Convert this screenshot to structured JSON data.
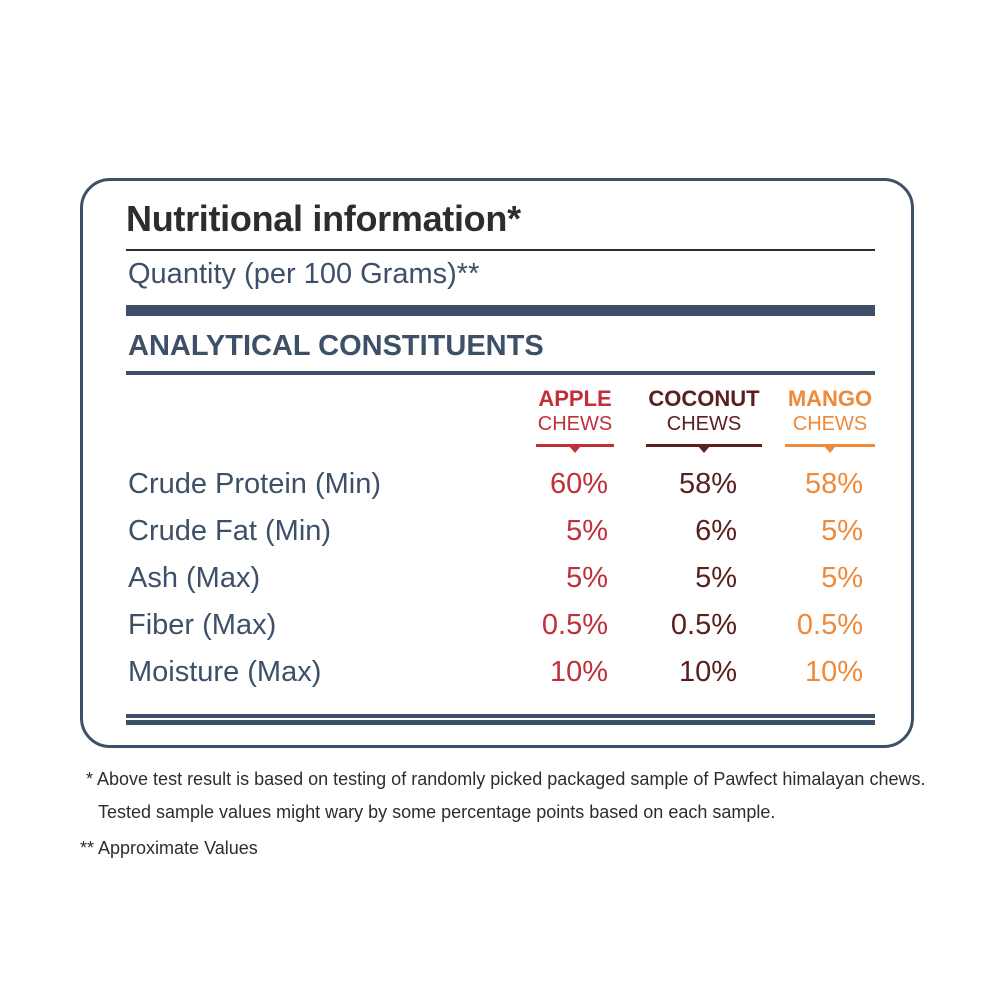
{
  "colors": {
    "navy": "#3e5068",
    "dark_text": "#2d2d2d",
    "apple": "#c0303a",
    "coconut": "#5a2020",
    "mango": "#ee8a3a"
  },
  "title": "Nutritional information*",
  "quantity": "Quantity (per 100 Grams)**",
  "section": "ANALYTICAL CONSTITUENTS",
  "columns": [
    {
      "name": "APPLE",
      "sub": "CHEWS"
    },
    {
      "name": "COCONUT",
      "sub": "CHEWS"
    },
    {
      "name": "MANGO",
      "sub": "CHEWS"
    }
  ],
  "rows": [
    {
      "label": "Crude Protein (Min)",
      "values": [
        "60%",
        "58%",
        "58%"
      ]
    },
    {
      "label": "Crude Fat (Min)",
      "values": [
        "5%",
        "6%",
        "5%"
      ]
    },
    {
      "label": "Ash (Max)",
      "values": [
        "5%",
        "5%",
        "5%"
      ]
    },
    {
      "label": "Fiber (Max)",
      "values": [
        "0.5%",
        "0.5%",
        "0.5%"
      ]
    },
    {
      "label": "Moisture (Max)",
      "values": [
        "10%",
        "10%",
        "10%"
      ]
    }
  ],
  "notes": {
    "line1": "* Above test result is based on testing of randomly picked packaged sample of Pawfect himalayan chews.",
    "line2": "Tested sample values might wary by some percentage points based on each sample.",
    "line3": "** Approximate Values"
  }
}
